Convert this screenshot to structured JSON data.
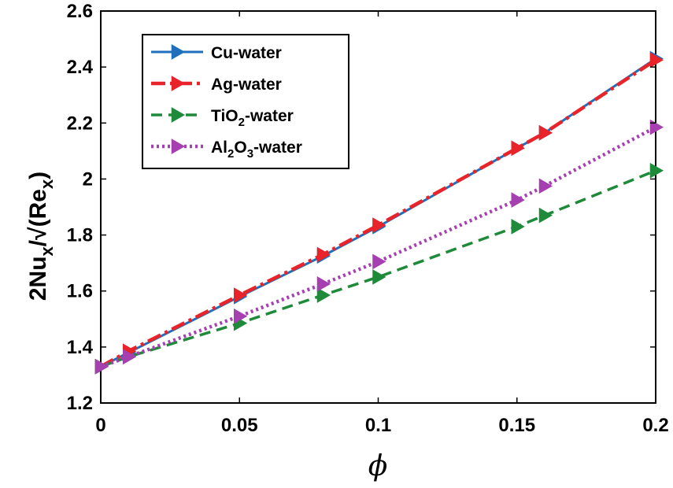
{
  "chart_data": {
    "type": "line",
    "title": "",
    "xlabel": "ϕ",
    "ylabel": "2Nu_x/√(Re_x)",
    "ylabel_parts": {
      "main": "2Nu",
      "sub1": "x",
      "mid": "/√(Re",
      "sub2": "x",
      "end": ")"
    },
    "xlim": [
      0,
      0.2
    ],
    "ylim": [
      1.2,
      2.6
    ],
    "xticks": [
      0,
      0.05,
      0.1,
      0.15,
      0.2
    ],
    "xtick_labels": [
      "0",
      "0.05",
      "0.1",
      "0.15",
      "0.2"
    ],
    "yticks": [
      1.2,
      1.4,
      1.6,
      1.8,
      2.0,
      2.2,
      2.4,
      2.6
    ],
    "ytick_labels": [
      "1.2",
      "1.4",
      "1.6",
      "1.8",
      "2",
      "2.2",
      "2.4",
      "2.6"
    ],
    "grid": false,
    "legend_position": "top-left",
    "series": [
      {
        "name": "Cu-water",
        "legend": {
          "main": "Cu-water"
        },
        "color": "#1f6fbd",
        "dash": "solid",
        "x": [
          0,
          0.01,
          0.05,
          0.08,
          0.1,
          0.15,
          0.16,
          0.2
        ],
        "y": [
          1.33,
          1.38,
          1.58,
          1.725,
          1.83,
          2.11,
          2.165,
          2.43
        ]
      },
      {
        "name": "Ag-water",
        "legend": {
          "main": "Ag-water"
        },
        "color": "#e8232a",
        "dash": "dashdot",
        "x": [
          0,
          0.01,
          0.05,
          0.08,
          0.1,
          0.15,
          0.16,
          0.2
        ],
        "y": [
          1.33,
          1.385,
          1.585,
          1.73,
          1.835,
          2.11,
          2.165,
          2.425
        ]
      },
      {
        "name": "TiO2-water",
        "legend": {
          "main": "TiO",
          "sub": "2",
          "rest": "-water"
        },
        "color": "#1e8a3a",
        "dash": "dashed",
        "x": [
          0,
          0.01,
          0.05,
          0.08,
          0.1,
          0.15,
          0.16,
          0.2
        ],
        "y": [
          1.33,
          1.365,
          1.485,
          1.585,
          1.65,
          1.83,
          1.87,
          2.03
        ]
      },
      {
        "name": "Al2O3-water",
        "legend": {
          "main": "Al",
          "sub": "2",
          "mid": "O",
          "sub2": "3",
          "rest": "-water"
        },
        "color": "#a63fb0",
        "dash": "dotted",
        "x": [
          0,
          0.01,
          0.05,
          0.08,
          0.1,
          0.15,
          0.16,
          0.2
        ],
        "y": [
          1.33,
          1.365,
          1.51,
          1.625,
          1.705,
          1.925,
          1.975,
          2.185
        ]
      }
    ]
  }
}
